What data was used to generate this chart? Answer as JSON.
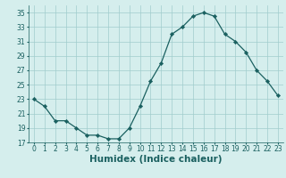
{
  "x": [
    0,
    1,
    2,
    3,
    4,
    5,
    6,
    7,
    8,
    9,
    10,
    11,
    12,
    13,
    14,
    15,
    16,
    17,
    18,
    19,
    20,
    21,
    22,
    23
  ],
  "y": [
    23,
    22,
    20,
    20,
    19,
    18,
    18,
    17.5,
    17.5,
    19,
    22,
    25.5,
    28,
    32,
    33,
    34.5,
    35,
    34.5,
    32,
    31,
    29.5,
    27,
    25.5,
    23.5
  ],
  "line_color": "#1a6060",
  "marker": "D",
  "marker_size": 2.2,
  "bg_color": "#d5eeed",
  "grid_color": "#a0cccc",
  "xlabel": "Humidex (Indice chaleur)",
  "ylim": [
    17,
    36
  ],
  "xlim": [
    -0.5,
    23.5
  ],
  "yticks": [
    17,
    19,
    21,
    23,
    25,
    27,
    29,
    31,
    33,
    35
  ],
  "xticks": [
    0,
    1,
    2,
    3,
    4,
    5,
    6,
    7,
    8,
    9,
    10,
    11,
    12,
    13,
    14,
    15,
    16,
    17,
    18,
    19,
    20,
    21,
    22,
    23
  ],
  "tick_labelsize": 5.5,
  "xlabel_fontsize": 7.5
}
